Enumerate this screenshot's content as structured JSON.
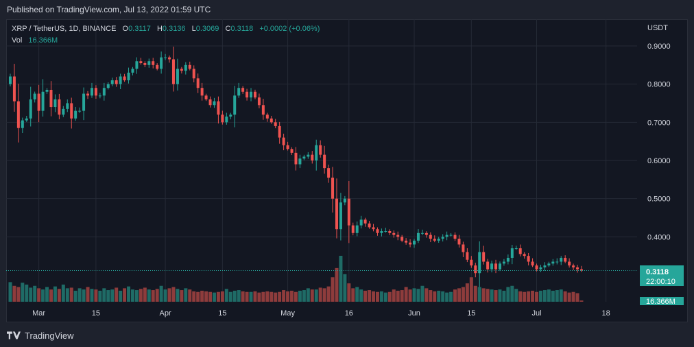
{
  "header": {
    "published": "Published on TradingView.com, Jul 13, 2022 01:59 UTC"
  },
  "legend": {
    "symbol": "XRP / TetherUS, 1D, BINANCE",
    "open_label": "O",
    "open": "0.3117",
    "high_label": "H",
    "high": "0.3136",
    "low_label": "L",
    "low": "0.3069",
    "close_label": "C",
    "close": "0.3118",
    "change": "+0.0002 (+0.06%)",
    "vol_label": "Vol",
    "vol": "16.366M"
  },
  "footer": {
    "brand": "TradingView"
  },
  "colors": {
    "up": "#26a69a",
    "down": "#ef5350",
    "up_vol": "#1f6b66",
    "down_vol": "#8e3c3c",
    "grid": "#252a36",
    "text": "#d1d4dc"
  },
  "chart_data": {
    "type": "candlestick",
    "title": "XRP / TetherUS, 1D, BINANCE",
    "currency": "USDT",
    "ylim": [
      0.23,
      0.97
    ],
    "y_ticks": [
      "0.9000",
      "0.8000",
      "0.7000",
      "0.6000",
      "0.5000",
      "0.4000"
    ],
    "y_tick_values": [
      0.9,
      0.8,
      0.7,
      0.6,
      0.5,
      0.4
    ],
    "x_ticks": [
      {
        "label": "Mar",
        "index": 7
      },
      {
        "label": "15",
        "index": 21
      },
      {
        "label": "Apr",
        "index": 38
      },
      {
        "label": "15",
        "index": 52
      },
      {
        "label": "May",
        "index": 68
      },
      {
        "label": "16",
        "index": 83
      },
      {
        "label": "Jun",
        "index": 99
      },
      {
        "label": "15",
        "index": 113
      },
      {
        "label": "Jul",
        "index": 129
      },
      {
        "label": "18",
        "index": 146
      }
    ],
    "last_price": "0.3118",
    "last_price_value": 0.3118,
    "countdown": "22:00:10",
    "volume_label": "16.366M",
    "closes": [
      0.82,
      0.755,
      0.685,
      0.705,
      0.71,
      0.76,
      0.775,
      0.73,
      0.78,
      0.785,
      0.74,
      0.76,
      0.72,
      0.735,
      0.75,
      0.71,
      0.73,
      0.73,
      0.775,
      0.77,
      0.79,
      0.77,
      0.77,
      0.79,
      0.8,
      0.81,
      0.8,
      0.82,
      0.81,
      0.83,
      0.84,
      0.86,
      0.855,
      0.85,
      0.86,
      0.85,
      0.84,
      0.87,
      0.87,
      0.865,
      0.8,
      0.84,
      0.835,
      0.85,
      0.84,
      0.815,
      0.79,
      0.77,
      0.76,
      0.745,
      0.755,
      0.72,
      0.7,
      0.715,
      0.72,
      0.77,
      0.79,
      0.78,
      0.765,
      0.78,
      0.765,
      0.745,
      0.72,
      0.71,
      0.7,
      0.69,
      0.66,
      0.64,
      0.63,
      0.62,
      0.59,
      0.605,
      0.61,
      0.615,
      0.6,
      0.64,
      0.615,
      0.58,
      0.555,
      0.5,
      0.42,
      0.49,
      0.5,
      0.43,
      0.41,
      0.43,
      0.445,
      0.435,
      0.425,
      0.42,
      0.41,
      0.415,
      0.415,
      0.41,
      0.405,
      0.4,
      0.39,
      0.385,
      0.38,
      0.39,
      0.41,
      0.41,
      0.405,
      0.395,
      0.39,
      0.395,
      0.4,
      0.405,
      0.405,
      0.395,
      0.38,
      0.36,
      0.34,
      0.325,
      0.305,
      0.36,
      0.335,
      0.315,
      0.33,
      0.315,
      0.33,
      0.335,
      0.345,
      0.37,
      0.37,
      0.355,
      0.35,
      0.335,
      0.325,
      0.315,
      0.32,
      0.325,
      0.33,
      0.335,
      0.335,
      0.345,
      0.335,
      0.325,
      0.32,
      0.315,
      0.3118
    ],
    "volumes": [
      3.2,
      2.6,
      2.4,
      3.1,
      2.8,
      2.3,
      2.6,
      2.2,
      2.0,
      2.4,
      2.0,
      2.5,
      2.1,
      2.8,
      2.2,
      2.3,
      1.8,
      2.2,
      2.0,
      2.4,
      2.1,
      2.0,
      1.8,
      2.2,
      1.9,
      2.0,
      2.3,
      1.8,
      2.2,
      2.5,
      2.0,
      1.9,
      2.1,
      2.3,
      2.0,
      1.9,
      2.1,
      2.6,
      2.0,
      2.2,
      2.4,
      2.1,
      1.9,
      2.2,
      2.0,
      1.7,
      1.6,
      1.8,
      1.7,
      1.6,
      1.5,
      1.6,
      1.7,
      2.1,
      1.6,
      1.8,
      1.9,
      1.7,
      1.6,
      1.6,
      1.7,
      1.5,
      1.6,
      1.7,
      1.6,
      1.5,
      1.6,
      1.9,
      1.7,
      1.8,
      1.6,
      1.8,
      1.9,
      2.2,
      2.0,
      2.0,
      2.3,
      2.2,
      2.5,
      4.0,
      5.5,
      7.5,
      4.5,
      3.0,
      2.2,
      2.4,
      2.0,
      1.8,
      1.9,
      1.7,
      1.6,
      1.7,
      1.5,
      1.6,
      2.0,
      1.8,
      1.9,
      2.4,
      2.0,
      2.2,
      2.1,
      2.6,
      2.2,
      1.9,
      1.7,
      1.8,
      1.7,
      1.5,
      1.6,
      2.0,
      2.2,
      2.4,
      3.0,
      4.0,
      2.6,
      2.4,
      2.2,
      2.1,
      2.0,
      1.9,
      2.0,
      1.8,
      2.4,
      2.6,
      2.1,
      1.7,
      1.6,
      1.7,
      1.8,
      1.6,
      1.8,
      1.9,
      2.0,
      1.8,
      1.9,
      2.0,
      1.7,
      1.5,
      1.6,
      1.4,
      0.2
    ]
  }
}
